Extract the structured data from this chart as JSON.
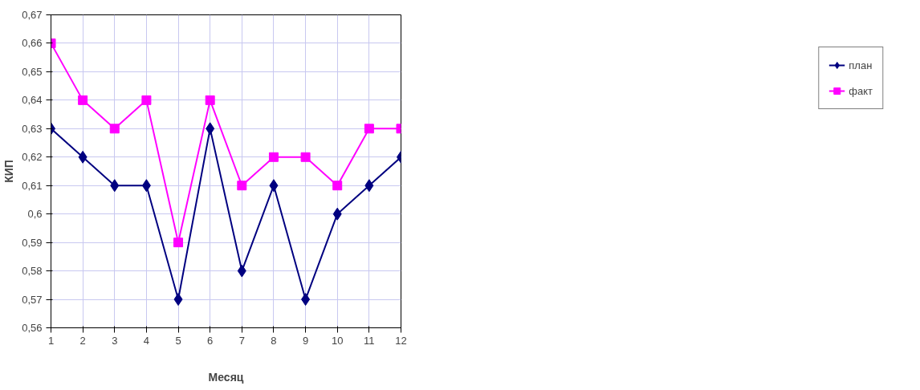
{
  "chart_data": {
    "type": "line",
    "xlabel": "Месяц",
    "ylabel": "КИП",
    "x": [
      1,
      2,
      3,
      4,
      5,
      6,
      7,
      8,
      9,
      10,
      11,
      12
    ],
    "series": [
      {
        "name": "план",
        "color": "#000080",
        "marker": "diamond",
        "values": [
          0.63,
          0.62,
          0.61,
          0.61,
          0.57,
          0.63,
          0.58,
          0.61,
          0.57,
          0.6,
          0.61,
          0.62
        ]
      },
      {
        "name": "факт",
        "color": "#ff00ff",
        "marker": "square",
        "values": [
          0.66,
          0.64,
          0.63,
          0.64,
          0.59,
          0.64,
          0.61,
          0.62,
          0.62,
          0.61,
          0.63,
          0.63
        ]
      }
    ],
    "xlim": [
      1,
      12
    ],
    "xticks": [
      1,
      2,
      3,
      4,
      5,
      6,
      7,
      8,
      9,
      10,
      11,
      12
    ],
    "ylim": [
      0.56,
      0.67
    ],
    "yticks": [
      {
        "value": 0.56,
        "label": "0,56"
      },
      {
        "value": 0.57,
        "label": "0,57"
      },
      {
        "value": 0.58,
        "label": "0,58"
      },
      {
        "value": 0.59,
        "label": "0,59"
      },
      {
        "value": 0.6,
        "label": "0,6"
      },
      {
        "value": 0.61,
        "label": "0,61"
      },
      {
        "value": 0.62,
        "label": "0,62"
      },
      {
        "value": 0.63,
        "label": "0,63"
      },
      {
        "value": 0.64,
        "label": "0,64"
      },
      {
        "value": 0.65,
        "label": "0,65"
      },
      {
        "value": 0.66,
        "label": "0,66"
      },
      {
        "value": 0.67,
        "label": "0,67"
      }
    ],
    "grid": true,
    "legend": "right",
    "line_style": "solid"
  }
}
